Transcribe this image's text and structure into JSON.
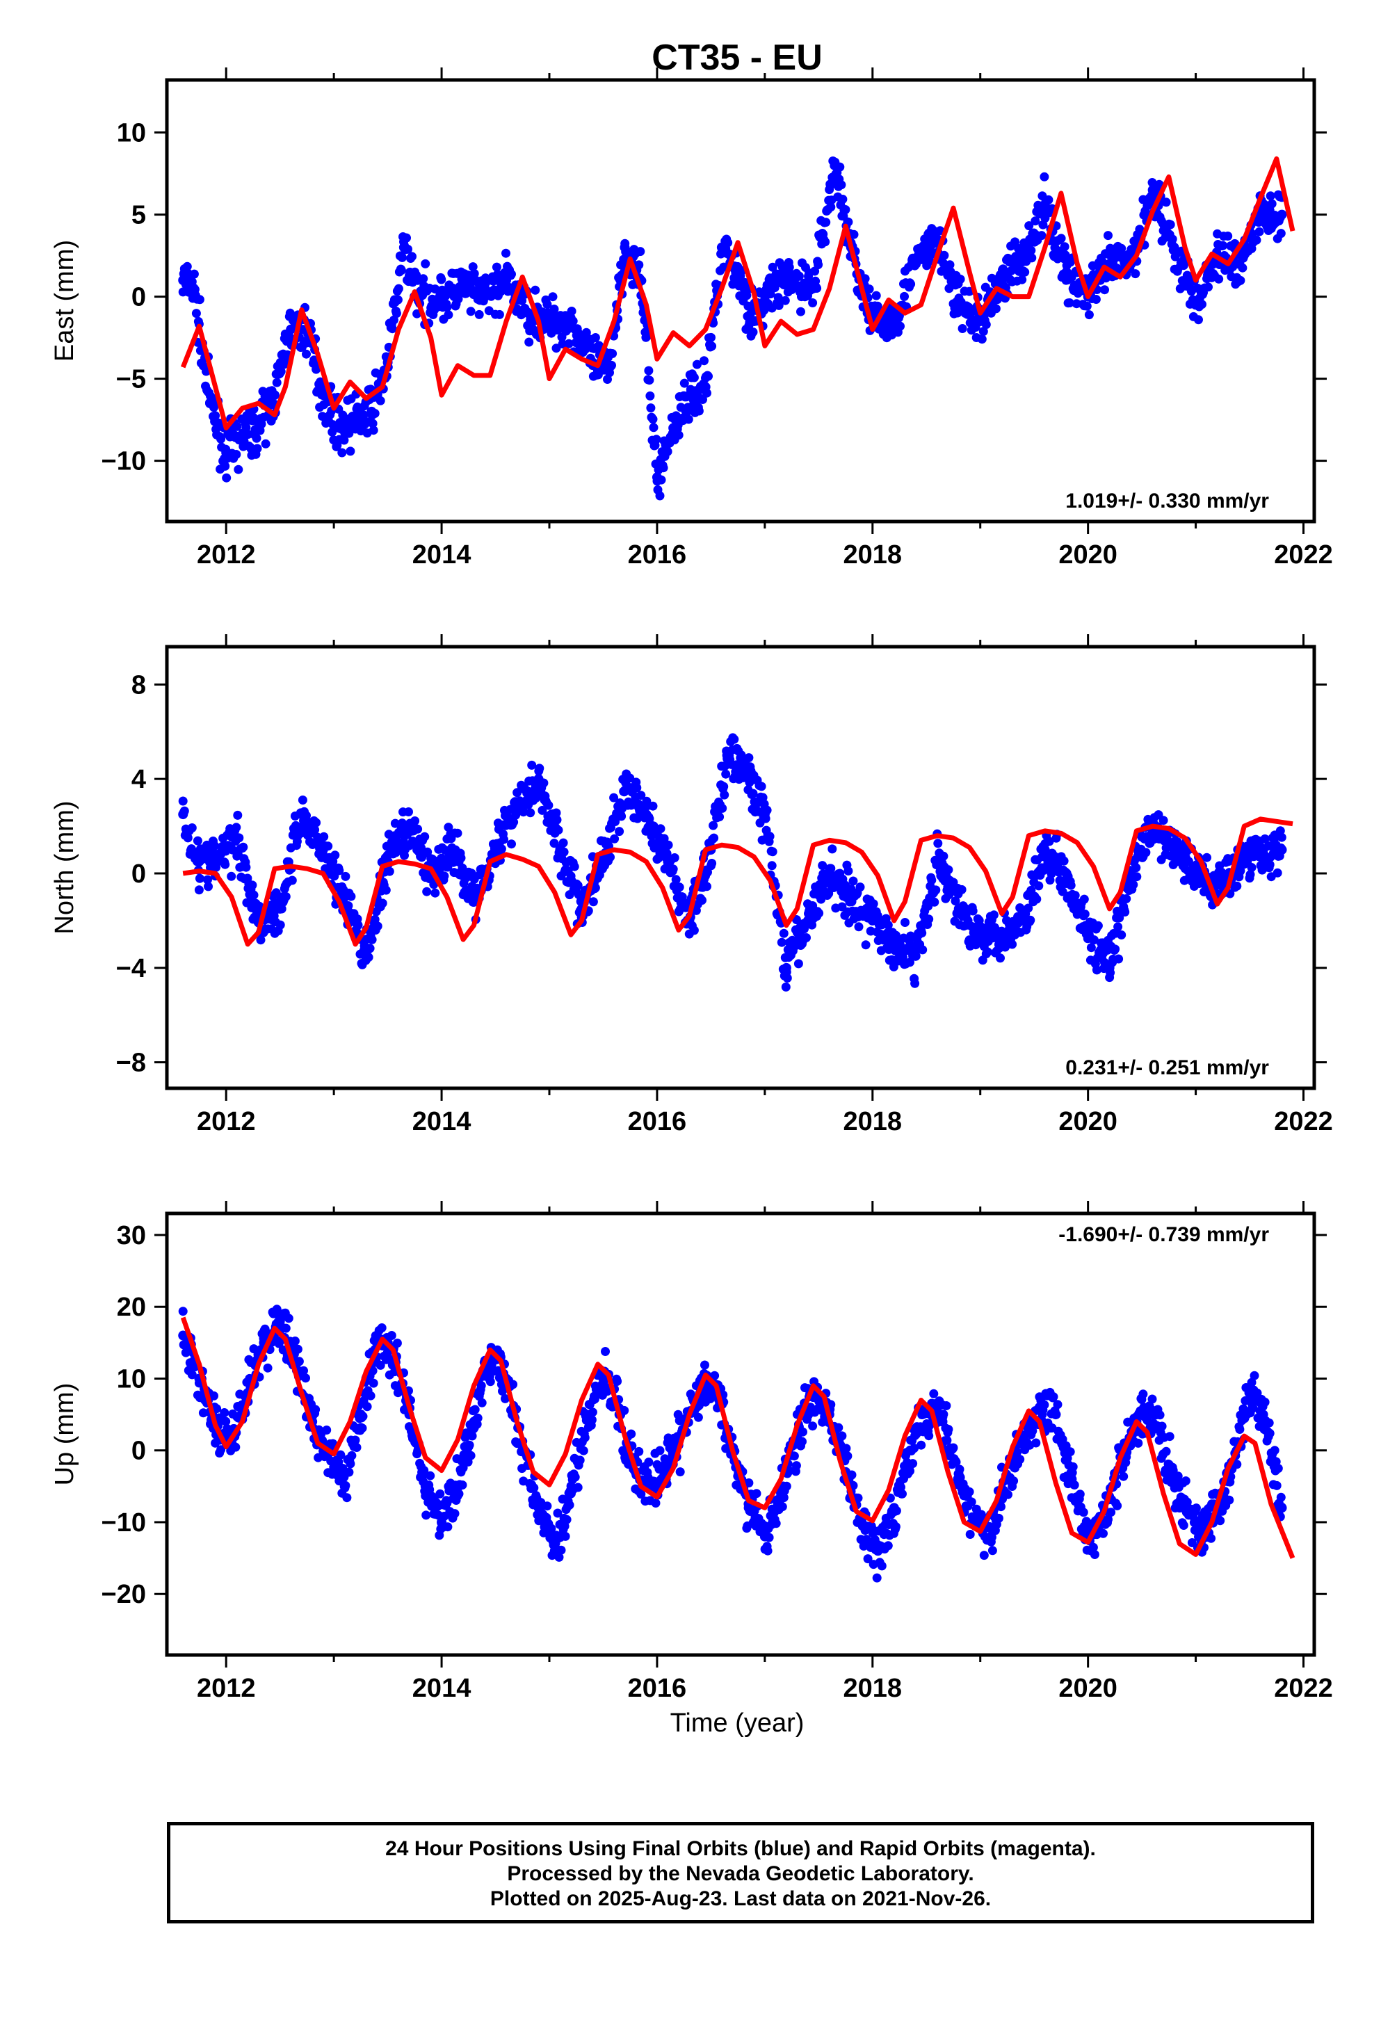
{
  "title": "CT35 - EU",
  "xlabel": "Time (year)",
  "footer": {
    "line1": "24 Hour Positions Using Final Orbits (blue) and Rapid Orbits (magenta).",
    "line2": "Processed by the Nevada Geodetic Laboratory.",
    "line3": "Plotted on 2025-Aug-23. Last data on 2021-Nov-26."
  },
  "colors": {
    "points": "#0000ff",
    "model": "#ff0000",
    "frame": "#000000"
  },
  "chart_data": [
    {
      "type": "scatter",
      "ylabel": "East (mm)",
      "rate": "1.019+/- 0.330 mm/yr",
      "rate_position": "bottom-right",
      "xlim": [
        2011.45,
        2022.1
      ],
      "ylim": [
        -13.7,
        13.2
      ],
      "xticks": [
        2012,
        2014,
        2016,
        2018,
        2020,
        2022
      ],
      "yticks": [
        -10,
        -5,
        0,
        5,
        10
      ],
      "yticklabels": [
        "−10",
        "−5",
        "0",
        "5",
        "10"
      ],
      "grid": false,
      "series": [
        {
          "kind": "observations",
          "x": [
            2011.6,
            2011.7,
            2011.85,
            2012.0,
            2012.15,
            2012.3,
            2012.45,
            2012.6,
            2012.75,
            2012.9,
            2013.05,
            2013.2,
            2013.35,
            2013.5,
            2013.65,
            2013.8,
            2014.0,
            2014.2,
            2014.4,
            2014.6,
            2014.8,
            2015.0,
            2015.2,
            2015.4,
            2015.55,
            2015.7,
            2015.85,
            2016.0,
            2016.15,
            2016.3,
            2016.45,
            2016.6,
            2016.75,
            2016.9,
            2017.05,
            2017.25,
            2017.45,
            2017.65,
            2017.8,
            2018.0,
            2018.2,
            2018.4,
            2018.6,
            2018.8,
            2019.0,
            2019.2,
            2019.4,
            2019.6,
            2019.8,
            2020.0,
            2020.2,
            2020.4,
            2020.6,
            2020.8,
            2021.0,
            2021.2,
            2021.4,
            2021.6,
            2021.8
          ],
          "y": [
            1.0,
            0.5,
            -6.5,
            -9.5,
            -8.5,
            -8.0,
            -6.0,
            -2.0,
            -2.0,
            -6.0,
            -8.0,
            -7.5,
            -7.0,
            -4.0,
            3.0,
            0.0,
            0.0,
            0.5,
            0.0,
            1.0,
            -1.0,
            -1.5,
            -1.5,
            -4.0,
            -4.5,
            3.0,
            1.0,
            -11.0,
            -8.0,
            -6.0,
            -5.5,
            3.0,
            1.5,
            -1.5,
            0.5,
            1.0,
            0.5,
            8.0,
            3.0,
            -1.5,
            -1.5,
            2.0,
            3.5,
            -0.5,
            -1.5,
            1.0,
            2.5,
            5.5,
            1.5,
            0.0,
            2.0,
            2.0,
            6.5,
            3.0,
            -0.5,
            2.5,
            2.0,
            5.0,
            5.0
          ]
        },
        {
          "kind": "model",
          "x": [
            2011.6,
            2011.75,
            2011.9,
            2012.0,
            2012.15,
            2012.3,
            2012.45,
            2012.55,
            2012.7,
            2012.85,
            2013.0,
            2013.15,
            2013.3,
            2013.45,
            2013.6,
            2013.75,
            2013.9,
            2014.0,
            2014.15,
            2014.3,
            2014.45,
            2014.6,
            2014.75,
            2014.9,
            2015.0,
            2015.15,
            2015.3,
            2015.45,
            2015.6,
            2015.75,
            2015.9,
            2016.0,
            2016.15,
            2016.3,
            2016.45,
            2016.6,
            2016.75,
            2016.9,
            2017.0,
            2017.15,
            2017.3,
            2017.45,
            2017.6,
            2017.75,
            2017.9,
            2018.0,
            2018.15,
            2018.3,
            2018.45,
            2018.6,
            2018.75,
            2018.9,
            2019.0,
            2019.15,
            2019.3,
            2019.45,
            2019.6,
            2019.75,
            2019.9,
            2020.0,
            2020.15,
            2020.3,
            2020.45,
            2020.6,
            2020.75,
            2020.9,
            2021.0,
            2021.15,
            2021.3,
            2021.45,
            2021.6,
            2021.75,
            2021.9
          ],
          "y": [
            -4.3,
            -1.8,
            -5.5,
            -8.0,
            -6.8,
            -6.5,
            -7.2,
            -5.5,
            -0.8,
            -3.5,
            -6.8,
            -5.2,
            -6.2,
            -5.5,
            -2.0,
            0.3,
            -2.5,
            -6.0,
            -4.2,
            -4.8,
            -4.8,
            -1.5,
            1.2,
            -1.5,
            -5.0,
            -3.2,
            -3.8,
            -4.2,
            -1.5,
            2.3,
            -0.5,
            -3.8,
            -2.2,
            -3.0,
            -2.0,
            0.5,
            3.3,
            0.2,
            -3.0,
            -1.5,
            -2.3,
            -2.0,
            0.5,
            4.3,
            0.5,
            -2.0,
            -0.2,
            -1.0,
            -0.5,
            2.5,
            5.4,
            1.5,
            -1.0,
            0.5,
            0.0,
            0.0,
            3.0,
            6.3,
            2.0,
            0.0,
            1.8,
            1.2,
            2.5,
            5.2,
            7.3,
            3.0,
            1.0,
            2.6,
            2.0,
            3.5,
            6.0,
            8.4,
            4.0
          ]
        }
      ]
    },
    {
      "type": "scatter",
      "ylabel": "North (mm)",
      "rate": "0.231+/- 0.251 mm/yr",
      "rate_position": "bottom-right",
      "xlim": [
        2011.45,
        2022.1
      ],
      "ylim": [
        -9.1,
        9.6
      ],
      "xticks": [
        2012,
        2014,
        2016,
        2018,
        2020,
        2022
      ],
      "yticks": [
        -8,
        -4,
        0,
        4,
        8
      ],
      "yticklabels": [
        "−8",
        "−4",
        "0",
        "4",
        "8"
      ],
      "grid": false,
      "series": [
        {
          "kind": "observations",
          "x": [
            2011.6,
            2011.75,
            2011.9,
            2012.1,
            2012.3,
            2012.5,
            2012.7,
            2012.9,
            2013.1,
            2013.3,
            2013.5,
            2013.7,
            2013.9,
            2014.1,
            2014.3,
            2014.5,
            2014.7,
            2014.9,
            2015.1,
            2015.3,
            2015.5,
            2015.7,
            2015.9,
            2016.1,
            2016.3,
            2016.5,
            2016.65,
            2016.8,
            2017.0,
            2017.2,
            2017.4,
            2017.6,
            2017.8,
            2018.0,
            2018.2,
            2018.4,
            2018.6,
            2018.8,
            2019.0,
            2019.2,
            2019.4,
            2019.6,
            2019.8,
            2020.0,
            2020.2,
            2020.4,
            2020.6,
            2020.8,
            2021.0,
            2021.2,
            2021.4,
            2021.6,
            2021.8
          ],
          "y": [
            2.5,
            0.5,
            0.5,
            1.5,
            -2.0,
            -1.5,
            2.5,
            1.0,
            -1.0,
            -3.5,
            0.5,
            2.0,
            0.0,
            1.0,
            -1.0,
            1.0,
            3.0,
            4.0,
            1.0,
            -1.5,
            0.5,
            3.5,
            2.5,
            0.5,
            -2.0,
            1.0,
            5.0,
            4.5,
            2.5,
            -4.0,
            -2.0,
            0.0,
            -1.0,
            -2.0,
            -3.0,
            -3.5,
            0.5,
            -1.5,
            -2.5,
            -2.5,
            -2.0,
            1.0,
            0.0,
            -2.5,
            -4.0,
            0.0,
            2.0,
            1.0,
            0.0,
            -0.5,
            0.5,
            1.0,
            1.0
          ]
        },
        {
          "kind": "model",
          "x": [
            2011.6,
            2011.75,
            2011.9,
            2012.05,
            2012.2,
            2012.3,
            2012.45,
            2012.6,
            2012.75,
            2012.9,
            2013.05,
            2013.2,
            2013.3,
            2013.45,
            2013.6,
            2013.75,
            2013.9,
            2014.05,
            2014.2,
            2014.3,
            2014.45,
            2014.6,
            2014.75,
            2014.9,
            2015.05,
            2015.2,
            2015.3,
            2015.45,
            2015.6,
            2015.75,
            2015.9,
            2016.05,
            2016.2,
            2016.3,
            2016.45,
            2016.6,
            2016.75,
            2016.9,
            2017.05,
            2017.2,
            2017.3,
            2017.45,
            2017.6,
            2017.75,
            2017.9,
            2018.05,
            2018.2,
            2018.3,
            2018.45,
            2018.6,
            2018.75,
            2018.9,
            2019.05,
            2019.2,
            2019.3,
            2019.45,
            2019.6,
            2019.75,
            2019.9,
            2020.05,
            2020.2,
            2020.3,
            2020.45,
            2020.6,
            2020.75,
            2020.9,
            2021.05,
            2021.2,
            2021.3,
            2021.45,
            2021.6,
            2021.75,
            2021.9
          ],
          "y": [
            0.0,
            0.1,
            0.0,
            -1.0,
            -3.0,
            -2.5,
            0.2,
            0.3,
            0.2,
            0.0,
            -1.2,
            -3.0,
            -2.3,
            0.3,
            0.5,
            0.4,
            0.2,
            -1.0,
            -2.8,
            -2.2,
            0.5,
            0.8,
            0.6,
            0.3,
            -0.8,
            -2.6,
            -2.0,
            0.8,
            1.0,
            0.9,
            0.5,
            -0.6,
            -2.4,
            -1.8,
            1.0,
            1.2,
            1.1,
            0.7,
            -0.3,
            -2.2,
            -1.5,
            1.2,
            1.4,
            1.3,
            0.9,
            -0.1,
            -2.0,
            -1.2,
            1.4,
            1.6,
            1.5,
            1.1,
            0.1,
            -1.7,
            -1.0,
            1.6,
            1.8,
            1.7,
            1.3,
            0.3,
            -1.5,
            -0.8,
            1.8,
            2.0,
            1.9,
            1.5,
            0.5,
            -1.3,
            -0.6,
            2.0,
            2.3,
            2.2,
            2.1
          ]
        }
      ]
    },
    {
      "type": "scatter",
      "ylabel": "Up (mm)",
      "rate": "-1.690+/- 0.739 mm/yr",
      "rate_position": "top-right",
      "xlim": [
        2011.45,
        2022.1
      ],
      "ylim": [
        -28.5,
        33.0
      ],
      "xticks": [
        2012,
        2014,
        2016,
        2018,
        2020,
        2022
      ],
      "yticks": [
        -20,
        -10,
        0,
        10,
        20,
        30
      ],
      "yticklabels": [
        "−20",
        "−10",
        "0",
        "10",
        "20",
        "30"
      ],
      "grid": false,
      "series": [
        {
          "kind": "observations",
          "x": [
            2011.6,
            2011.75,
            2011.9,
            2012.05,
            2012.2,
            2012.35,
            2012.5,
            2012.65,
            2012.8,
            2012.95,
            2013.1,
            2013.25,
            2013.4,
            2013.55,
            2013.7,
            2013.85,
            2014.0,
            2014.15,
            2014.3,
            2014.45,
            2014.6,
            2014.75,
            2014.9,
            2015.05,
            2015.2,
            2015.35,
            2015.5,
            2015.65,
            2015.8,
            2015.95,
            2016.1,
            2016.25,
            2016.4,
            2016.55,
            2016.7,
            2016.85,
            2017.0,
            2017.15,
            2017.3,
            2017.45,
            2017.6,
            2017.75,
            2017.9,
            2018.05,
            2018.2,
            2018.35,
            2018.5,
            2018.65,
            2018.8,
            2018.95,
            2019.1,
            2019.25,
            2019.4,
            2019.55,
            2019.7,
            2019.85,
            2020.0,
            2020.15,
            2020.3,
            2020.45,
            2020.6,
            2020.75,
            2020.9,
            2021.05,
            2021.2,
            2021.35,
            2021.5,
            2021.65,
            2021.8
          ],
          "y": [
            16.0,
            10.0,
            3.0,
            2.0,
            8.0,
            15.0,
            18.0,
            12.0,
            4.0,
            0.0,
            -5.0,
            5.0,
            15.0,
            14.0,
            5.0,
            -5.0,
            -10.0,
            -5.0,
            4.0,
            13.0,
            10.0,
            0.0,
            -8.0,
            -14.0,
            -6.0,
            5.0,
            10.0,
            5.0,
            -3.0,
            -5.0,
            -2.0,
            3.0,
            8.0,
            9.0,
            0.0,
            -8.0,
            -12.0,
            -6.0,
            2.0,
            8.0,
            5.0,
            -3.0,
            -10.0,
            -14.0,
            -8.0,
            0.0,
            6.0,
            4.0,
            -4.0,
            -10.0,
            -12.0,
            -4.0,
            2.0,
            6.0,
            5.0,
            -4.0,
            -12.0,
            -10.0,
            -2.0,
            4.0,
            5.0,
            -2.0,
            -8.0,
            -12.0,
            -8.0,
            -2.0,
            8.0,
            4.0,
            -8.0
          ]
        },
        {
          "kind": "model",
          "x": [
            2011.6,
            2011.75,
            2011.9,
            2012.0,
            2012.15,
            2012.3,
            2012.45,
            2012.55,
            2012.7,
            2012.85,
            2013.0,
            2013.15,
            2013.3,
            2013.45,
            2013.55,
            2013.7,
            2013.85,
            2014.0,
            2014.15,
            2014.3,
            2014.45,
            2014.55,
            2014.7,
            2014.85,
            2015.0,
            2015.15,
            2015.3,
            2015.45,
            2015.55,
            2015.7,
            2015.85,
            2016.0,
            2016.15,
            2016.3,
            2016.45,
            2016.55,
            2016.7,
            2016.85,
            2017.0,
            2017.15,
            2017.3,
            2017.45,
            2017.55,
            2017.7,
            2017.85,
            2018.0,
            2018.15,
            2018.3,
            2018.45,
            2018.55,
            2018.7,
            2018.85,
            2019.0,
            2019.15,
            2019.3,
            2019.45,
            2019.55,
            2019.7,
            2019.85,
            2020.0,
            2020.15,
            2020.3,
            2020.45,
            2020.55,
            2020.7,
            2020.85,
            2021.0,
            2021.15,
            2021.3,
            2021.45,
            2021.55,
            2021.7,
            2021.9
          ],
          "y": [
            18.5,
            12.0,
            3.5,
            0.5,
            4.0,
            12.0,
            17.0,
            15.5,
            8.0,
            1.0,
            -0.5,
            4.0,
            11.0,
            15.5,
            14.0,
            6.0,
            -1.0,
            -2.8,
            1.5,
            9.0,
            14.0,
            12.5,
            4.0,
            -3.0,
            -4.8,
            -0.5,
            7.0,
            12.0,
            10.5,
            2.0,
            -5.0,
            -6.5,
            -2.5,
            5.0,
            10.5,
            9.0,
            0.0,
            -7.0,
            -8.0,
            -4.0,
            3.5,
            9.0,
            7.5,
            -1.5,
            -8.5,
            -9.8,
            -5.5,
            2.0,
            7.0,
            5.5,
            -3.0,
            -10.0,
            -11.3,
            -7.0,
            0.5,
            5.5,
            4.0,
            -4.5,
            -11.5,
            -12.8,
            -8.5,
            -1.0,
            4.0,
            2.5,
            -6.0,
            -13.0,
            -14.5,
            -10.0,
            -2.5,
            2.0,
            1.0,
            -7.5,
            -15.0
          ]
        }
      ]
    }
  ]
}
